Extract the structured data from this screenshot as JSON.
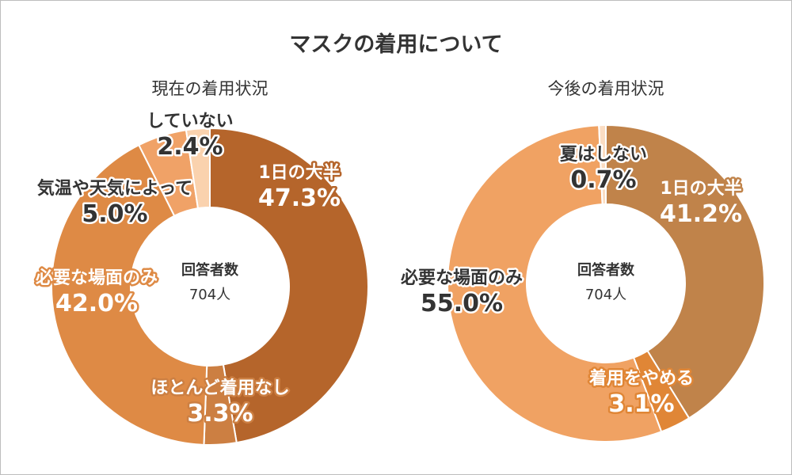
{
  "title": "マスクの着用について",
  "colors": {
    "stroke": "#ffffff",
    "label_outline": "#ffffff",
    "dark_text": "#333333"
  },
  "chart_data": [
    {
      "type": "pie",
      "subtitle": "現在の着用状況",
      "center_line1": "回答者数",
      "center_line2": "704人",
      "slices": [
        {
          "name": "1日の大半",
          "value": 47.3,
          "pct": "47.3%",
          "color": "#B5652B",
          "label_color": "#ffffff",
          "outline": "#B5652B"
        },
        {
          "name": "ほとんど着用なし",
          "value": 3.3,
          "pct": "3.3%",
          "color": "#CC7F42",
          "label_color": "#ffffff",
          "outline": "#CC7F42"
        },
        {
          "name": "必要な場面のみ",
          "value": 42.0,
          "pct": "42.0%",
          "color": "#DE8A45",
          "label_color": "#ffffff",
          "outline": "#DE8A45"
        },
        {
          "name": "気温や天気によって",
          "value": 5.0,
          "pct": "5.0%",
          "color": "#F0A267",
          "label_color": "#333333",
          "outline": "#ffffff"
        },
        {
          "name": "していない",
          "value": 2.4,
          "pct": "2.4%",
          "color": "#FAD2AE",
          "label_color": "#333333",
          "outline": "#ffffff"
        }
      ]
    },
    {
      "type": "pie",
      "subtitle": "今後の着用状況",
      "center_line1": "回答者数",
      "center_line2": "704人",
      "slices": [
        {
          "name": "1日の大半",
          "value": 41.2,
          "pct": "41.2%",
          "color": "#C0834A",
          "label_color": "#ffffff",
          "outline": "#C0834A"
        },
        {
          "name": "着用をやめる",
          "value": 3.1,
          "pct": "3.1%",
          "color": "#E08636",
          "label_color": "#ffffff",
          "outline": "#E08636"
        },
        {
          "name": "必要な場面のみ",
          "value": 55.0,
          "pct": "55.0%",
          "color": "#F0A263",
          "label_color": "#333333",
          "outline": "#ffffff"
        },
        {
          "name": "夏はしない",
          "value": 0.7,
          "pct": "0.7%",
          "color": "#FBDDC3",
          "label_color": "#333333",
          "outline": "#ffffff"
        }
      ]
    }
  ]
}
